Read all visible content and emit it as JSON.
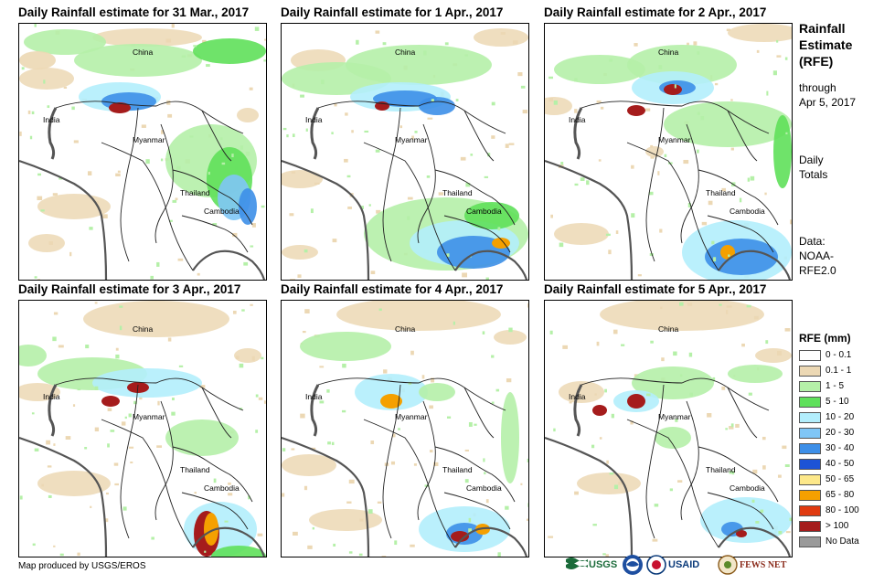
{
  "panels": [
    {
      "title": "Daily Rainfall estimate for 31 Mar., 2017"
    },
    {
      "title": "Daily Rainfall estimate for 1 Apr., 2017"
    },
    {
      "title": "Daily Rainfall estimate for 2 Apr., 2017"
    },
    {
      "title": "Daily Rainfall estimate for 3 Apr., 2017"
    },
    {
      "title": "Daily Rainfall estimate for 4 Apr., 2017"
    },
    {
      "title": "Daily Rainfall estimate for 5 Apr., 2017"
    }
  ],
  "map_labels": {
    "china": "China",
    "india": "India",
    "myanmar": "Myanmar",
    "thailand": "Thailand",
    "cambodia": "Cambodia"
  },
  "sidebar": {
    "title_1": "Rainfall",
    "title_2": "Estimate",
    "title_3": "(RFE)",
    "through": "through",
    "through_date": "Apr 5, 2017",
    "daily_1": "Daily",
    "daily_2": "Totals",
    "data_1": "Data:",
    "data_2": "NOAA-",
    "data_3": "RFE2.0"
  },
  "legend": {
    "title": "RFE (mm)",
    "items": [
      {
        "label": "0 - 0.1",
        "color": "#ffffff"
      },
      {
        "label": "0.1 - 1",
        "color": "#ecd8b4"
      },
      {
        "label": "1 - 5",
        "color": "#b5f0a8"
      },
      {
        "label": "5 - 10",
        "color": "#5fe05a"
      },
      {
        "label": "10 - 20",
        "color": "#b3eefc"
      },
      {
        "label": "20 - 30",
        "color": "#7fc6f6"
      },
      {
        "label": "30 - 40",
        "color": "#3d8fe8"
      },
      {
        "label": "40 - 50",
        "color": "#1c53d6"
      },
      {
        "label": "50 - 65",
        "color": "#fde88a"
      },
      {
        "label": "65 - 80",
        "color": "#f5a000"
      },
      {
        "label": "80 - 100",
        "color": "#e03a10"
      },
      {
        "label": "> 100",
        "color": "#a51c1c"
      },
      {
        "label": "No Data",
        "color": "#9a9a9a"
      }
    ]
  },
  "footer": {
    "credit": "Map produced by USGS/EROS",
    "logo_usgs": "USGS",
    "logo_noaa": "NOAA",
    "logo_usaid": "USAID",
    "logo_fewsnet": "FEWS NET"
  }
}
